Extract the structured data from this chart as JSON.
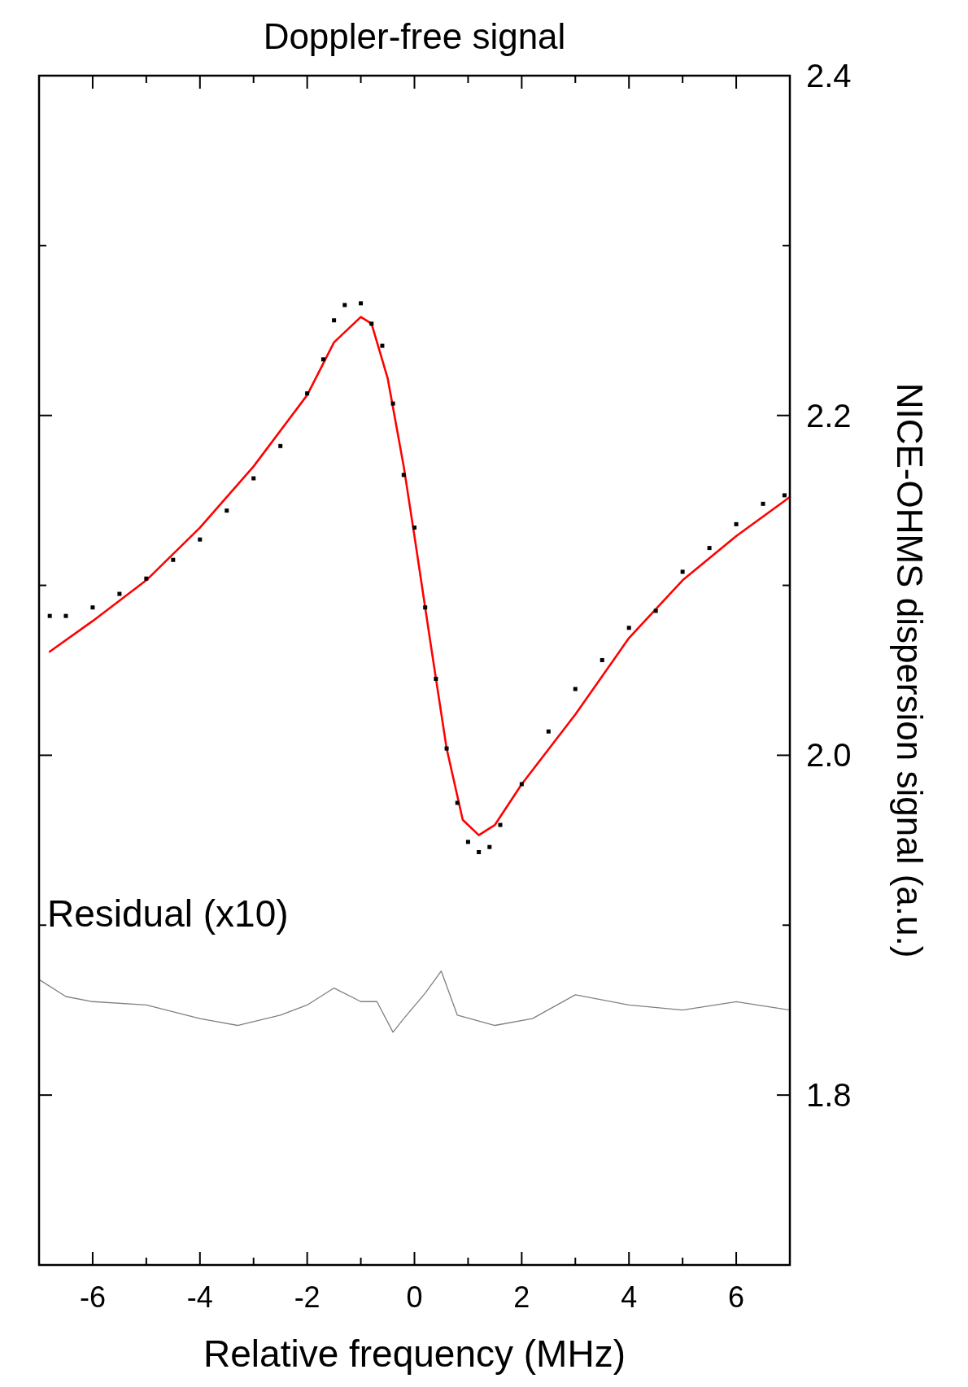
{
  "chart_data": {
    "type": "line",
    "title": "Doppler-free signal",
    "xlabel": "Relative frequency (MHz)",
    "ylabel": "NICE-OHMS dispersion signal (a.u.)",
    "xlim": [
      -7,
      7
    ],
    "ylim": [
      1.7,
      2.4
    ],
    "xticks": [
      -6,
      {
        "value": -5,
        "label": null
      },
      -4,
      {
        "value": -3,
        "label": null
      },
      -2,
      {
        "value": -1,
        "label": null
      },
      0,
      {
        "value": 1,
        "label": null
      },
      2,
      {
        "value": 3,
        "label": null
      },
      4,
      {
        "value": 5,
        "label": null
      },
      6
    ],
    "yticks": [
      {
        "value": 1.8,
        "label": "1.8"
      },
      {
        "value": 1.9,
        "label": null
      },
      {
        "value": 2,
        "label": "2.0"
      },
      {
        "value": 2.1,
        "label": null
      },
      {
        "value": 2.2,
        "label": "2.2"
      },
      {
        "value": 2.3,
        "label": null
      },
      {
        "value": 2.4,
        "label": "2.4"
      }
    ],
    "grid": false,
    "series": [
      {
        "type": "scatter",
        "marker": "square",
        "color": "#000000",
        "x": [
          -6.8,
          -6.5,
          -6,
          -5.5,
          -5,
          -4.5,
          -4,
          -3.5,
          -3,
          -2.5,
          -2,
          -1.7,
          -1.5,
          -1.3,
          -1,
          -0.8,
          -0.6,
          -0.4,
          -0.2,
          0,
          0.2,
          0.4,
          0.6,
          0.8,
          1,
          1.2,
          1.4,
          1.6,
          2,
          2.5,
          3,
          3.5,
          4,
          4.5,
          5,
          5.5,
          6,
          6.5,
          6.9
        ],
        "values": [
          2.082,
          2.082,
          2.087,
          2.095,
          2.104,
          2.115,
          2.127,
          2.144,
          2.163,
          2.182,
          2.213,
          2.233,
          2.256,
          2.265,
          2.266,
          2.254,
          2.241,
          2.207,
          2.165,
          2.134,
          2.087,
          2.045,
          2.004,
          1.972,
          1.949,
          1.943,
          1.946,
          1.959,
          1.983,
          2.014,
          2.039,
          2.056,
          2.075,
          2.085,
          2.108,
          2.122,
          2.136,
          2.148,
          2.153
        ]
      },
      {
        "color": "#ff0000",
        "x": [
          -6.8,
          -6,
          -5,
          -4,
          -3,
          -2,
          -1.5,
          -1,
          -0.8,
          -0.5,
          -0.2,
          0,
          0.3,
          0.6,
          0.9,
          1.2,
          1.5,
          2,
          3,
          4,
          5,
          6,
          7
        ],
        "values": [
          2.061,
          2.079,
          2.103,
          2.134,
          2.17,
          2.212,
          2.243,
          2.258,
          2.254,
          2.222,
          2.17,
          2.129,
          2.066,
          2.004,
          1.962,
          1.953,
          1.959,
          1.983,
          2.024,
          2.069,
          2.103,
          2.129,
          2.152
        ]
      },
      {
        "name": "Residual (x10)",
        "color": "#808080",
        "x": [
          -7,
          -6.5,
          -6,
          -5,
          -4,
          -3.3,
          -2.5,
          -2,
          -1.5,
          -1,
          -0.7,
          -0.4,
          -0.2,
          0.2,
          0.5,
          0.8,
          1.5,
          2.2,
          3,
          4,
          5,
          6,
          7
        ],
        "values": [
          1.868,
          1.858,
          1.855,
          1.853,
          1.845,
          1.841,
          1.847,
          1.853,
          1.863,
          1.855,
          1.855,
          1.837,
          1.845,
          1.86,
          1.873,
          1.847,
          1.841,
          1.845,
          1.859,
          1.853,
          1.85,
          1.855,
          1.85
        ]
      }
    ]
  }
}
